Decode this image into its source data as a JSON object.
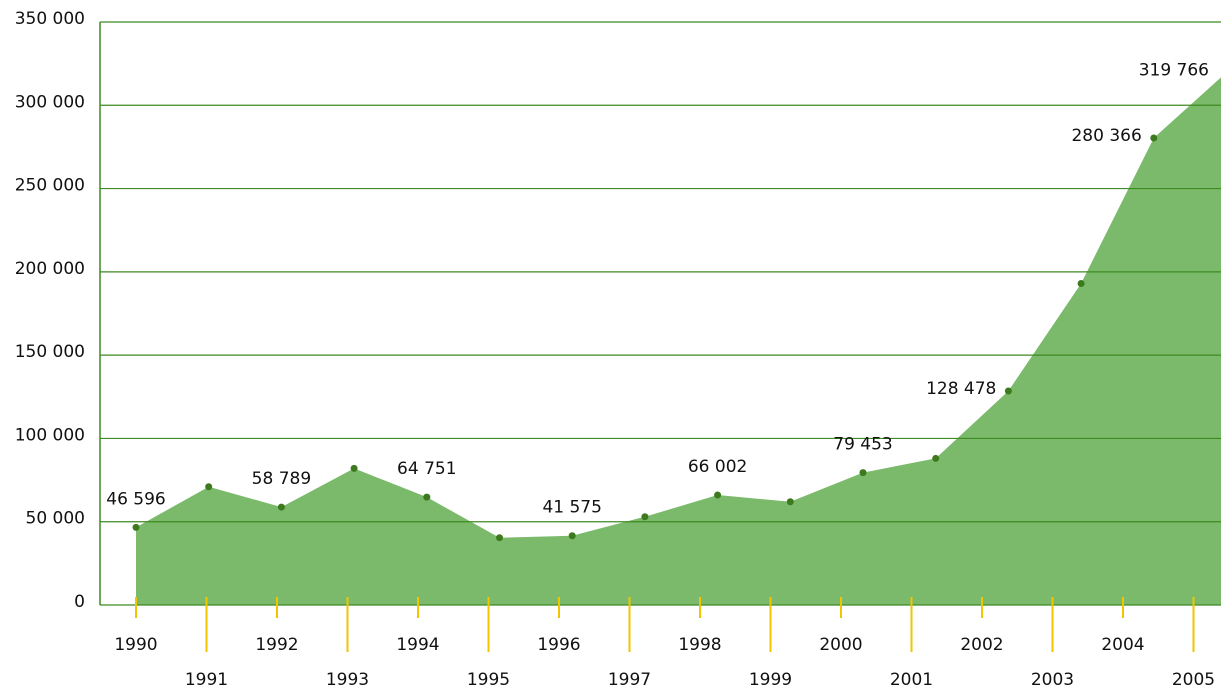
{
  "chart_data": {
    "type": "area",
    "categories": [
      "1990",
      "1991",
      "1992",
      "1993",
      "1994",
      "1995",
      "1996",
      "1997",
      "1998",
      "1999",
      "2000",
      "2001",
      "2002",
      "2003",
      "2004",
      "2005"
    ],
    "values": [
      46596,
      71000,
      58789,
      82000,
      64751,
      40400,
      41575,
      53000,
      66002,
      62000,
      79453,
      88000,
      128478,
      193000,
      280366,
      319766
    ],
    "value_labels": [
      "46 596",
      null,
      "58 789",
      null,
      "64 751",
      null,
      "41 575",
      null,
      "66 002",
      null,
      "79 453",
      null,
      "128 478",
      null,
      "280 366",
      "319 766"
    ],
    "color": "#7aba6a",
    "ylim": [
      0,
      350000
    ],
    "yticks": [
      0,
      {
        "value": 50000,
        "label": "50 000"
      },
      {
        "value": 100000,
        "label": "100 000"
      },
      {
        "value": 150000,
        "label": "150 000"
      },
      {
        "value": 200000,
        "label": "200 000"
      },
      {
        "value": 250000,
        "label": "250 000"
      },
      {
        "value": 300000,
        "label": "300 000"
      },
      {
        "value": 350000,
        "label": "350 000"
      }
    ],
    "grid": true
  }
}
